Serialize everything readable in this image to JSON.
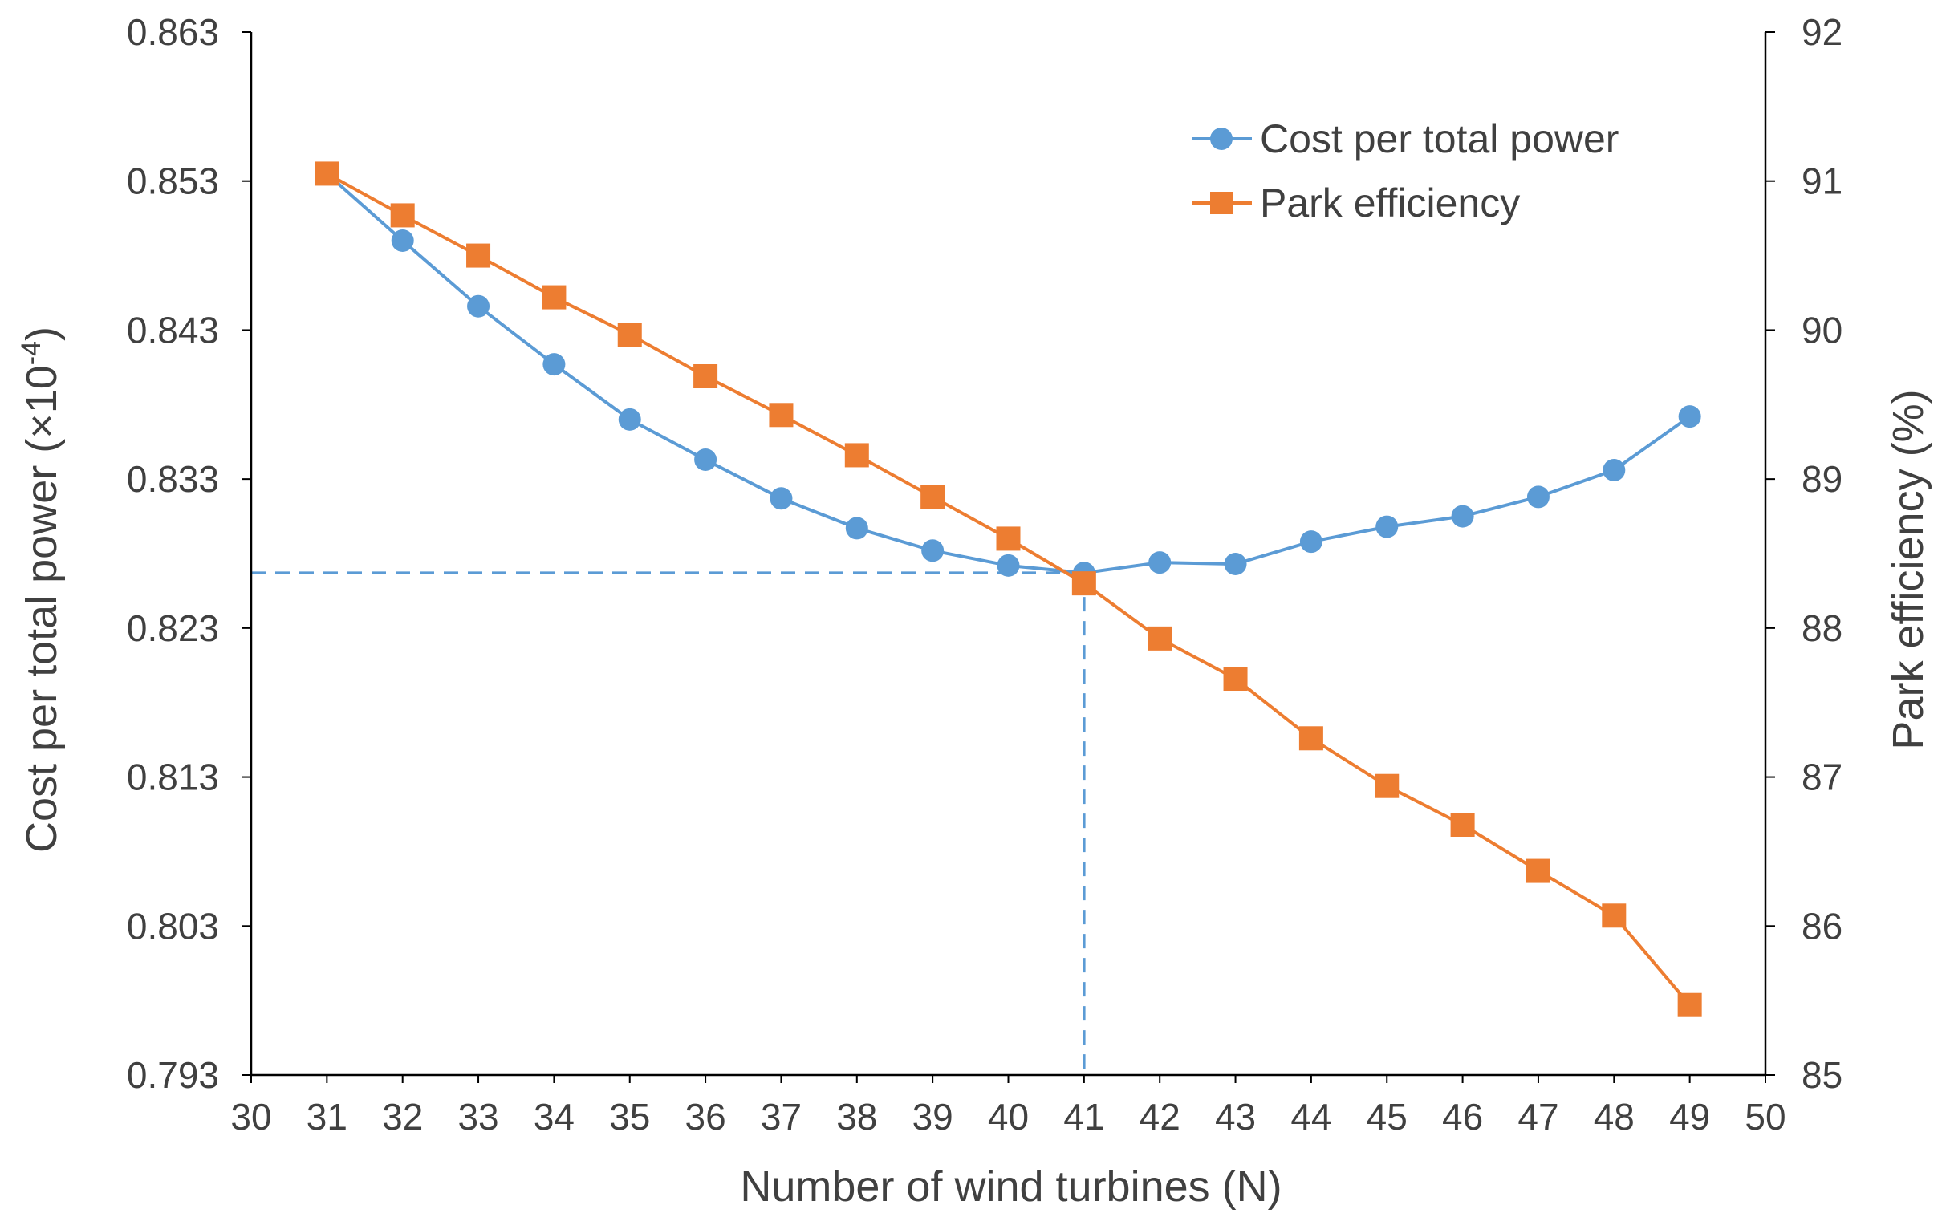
{
  "chart_data": {
    "type": "line",
    "title": "",
    "xlabel": "Number of wind turbines (N)",
    "ylabel_left_main": "Cost per total power (×10",
    "ylabel_left_exp": "-4",
    "ylabel_left_close": ")",
    "ylabel_right": "Park efficiency (%)",
    "xlim": [
      30,
      50
    ],
    "ylim_left": [
      0.793,
      0.863
    ],
    "ylim_right": [
      85,
      92
    ],
    "x_ticks": [
      "30",
      "31",
      "32",
      "33",
      "34",
      "35",
      "36",
      "37",
      "38",
      "39",
      "40",
      "41",
      "42",
      "43",
      "44",
      "45",
      "46",
      "47",
      "48",
      "49",
      "50"
    ],
    "y_left_ticks": [
      "0.793",
      "0.803",
      "0.813",
      "0.823",
      "0.833",
      "0.843",
      "0.853",
      "0.863"
    ],
    "y_right_ticks": [
      "85",
      "86",
      "87",
      "88",
      "89",
      "90",
      "91",
      "92"
    ],
    "x": [
      31,
      32,
      33,
      34,
      35,
      36,
      37,
      38,
      39,
      40,
      41,
      42,
      43,
      44,
      45,
      46,
      47,
      48,
      49
    ],
    "series": [
      {
        "name": "Cost per total power",
        "axis": "left",
        "marker": "circle",
        "color": "#5B9BD5",
        "values": [
          0.8535,
          0.849,
          0.8446,
          0.8407,
          0.837,
          0.8343,
          0.8317,
          0.8297,
          0.8282,
          0.8272,
          0.8267,
          0.8274,
          0.8273,
          0.8288,
          0.8298,
          0.8305,
          0.8318,
          0.8336,
          0.8372
        ]
      },
      {
        "name": "Park efficiency",
        "axis": "right",
        "marker": "square",
        "color": "#ED7D31",
        "values": [
          91.05,
          90.77,
          90.5,
          90.22,
          89.97,
          89.69,
          89.43,
          89.16,
          88.88,
          88.6,
          88.3,
          87.93,
          87.66,
          87.26,
          86.94,
          86.68,
          86.37,
          86.07,
          85.47
        ]
      }
    ],
    "reference_lines": {
      "x": 41,
      "y_left": 0.8267,
      "color": "#5B9BD5"
    },
    "legend_position": "top-right",
    "grid": false
  }
}
